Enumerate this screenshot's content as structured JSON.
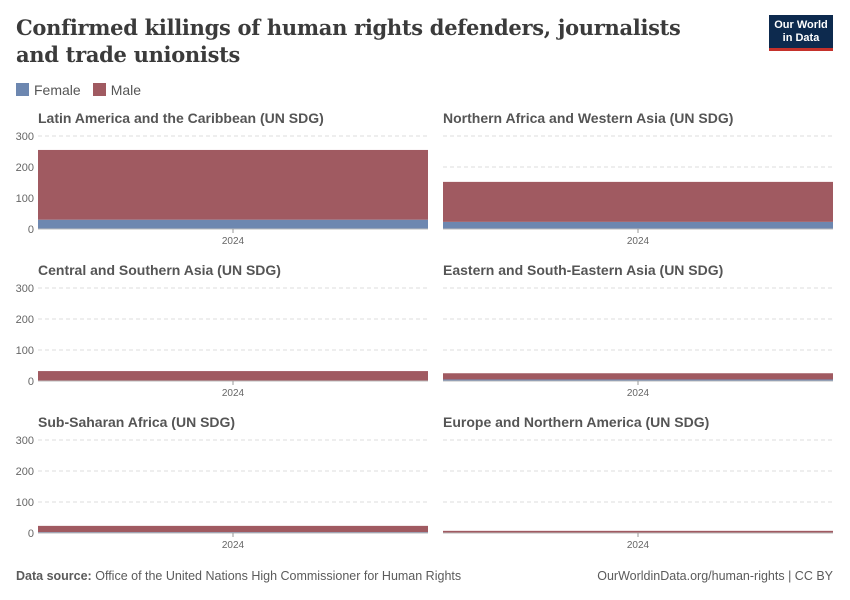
{
  "title": "Confirmed killings of human rights defenders, journalists and trade unionists",
  "logo": "Our World in Data",
  "footer": {
    "source_label": "Data source:",
    "source": "Office of the United Nations High Commissioner for Human Rights",
    "url": "OurWorldinData.org/human-rights | CC BY"
  },
  "chart_data": {
    "type": "bar",
    "stacked": true,
    "facets": true,
    "legend": [
      {
        "name": "Female",
        "color": "#6d87b0"
      },
      {
        "name": "Male",
        "color": "#a05a61"
      }
    ],
    "legend_position": "top-left",
    "ylim": [
      0,
      300
    ],
    "yticks": [
      "0",
      "100",
      "200",
      "300"
    ],
    "grid": true,
    "panels": [
      {
        "title": "Latin America and the Caribbean (UN SDG)",
        "x": "2024",
        "series": [
          {
            "name": "Female",
            "value": 30
          },
          {
            "name": "Male",
            "value": 225
          }
        ]
      },
      {
        "title": "Northern Africa and Western Asia (UN SDG)",
        "x": "2024",
        "series": [
          {
            "name": "Female",
            "value": 23
          },
          {
            "name": "Male",
            "value": 129
          }
        ]
      },
      {
        "title": "Central and Southern Asia (UN SDG)",
        "x": "2024",
        "series": [
          {
            "name": "Female",
            "value": 1
          },
          {
            "name": "Male",
            "value": 31
          }
        ]
      },
      {
        "title": "Eastern and South-Eastern Asia (UN SDG)",
        "x": "2024",
        "series": [
          {
            "name": "Female",
            "value": 5
          },
          {
            "name": "Male",
            "value": 20
          }
        ]
      },
      {
        "title": "Sub-Saharan Africa (UN SDG)",
        "x": "2024",
        "series": [
          {
            "name": "Female",
            "value": 3
          },
          {
            "name": "Male",
            "value": 20
          }
        ]
      },
      {
        "title": "Europe and Northern America (UN SDG)",
        "x": "2024",
        "series": [
          {
            "name": "Female",
            "value": 1
          },
          {
            "name": "Male",
            "value": 6
          }
        ]
      }
    ]
  }
}
